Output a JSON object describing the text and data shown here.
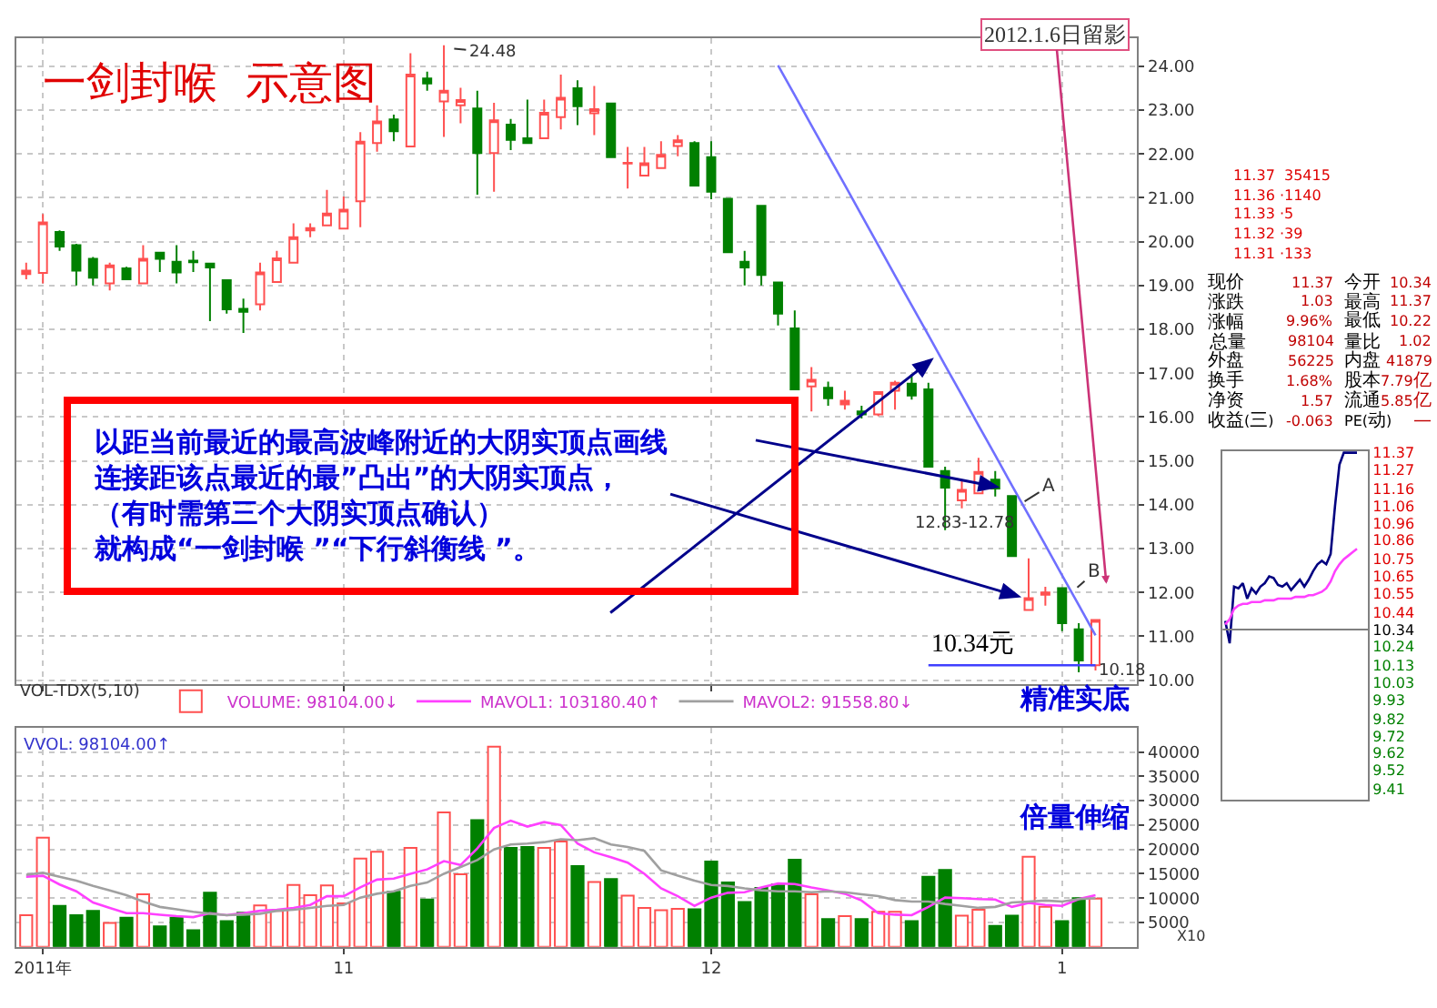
{
  "chart_data": [
    {
      "type": "candlestick",
      "title": "一剑封喉  示意图",
      "categories": [
        null,
        null,
        null,
        null,
        null,
        null,
        null,
        null,
        null,
        null,
        null,
        null,
        null,
        null,
        null,
        null,
        null,
        null,
        null,
        null,
        null,
        null,
        null,
        null,
        null,
        null,
        null,
        null,
        null,
        null,
        null,
        null,
        null,
        null,
        null,
        null,
        null,
        null,
        null,
        null,
        null,
        null,
        null,
        null,
        null,
        null,
        null,
        null,
        null,
        null,
        null,
        null,
        null,
        null,
        null,
        null,
        null,
        null,
        null,
        null,
        null,
        null,
        null,
        null,
        null
      ],
      "ohlc": [
        [
          19.26,
          19.52,
          19.14,
          19.34
        ],
        [
          19.29,
          20.63,
          19.05,
          20.44
        ],
        [
          20.22,
          20.26,
          19.79,
          19.89
        ],
        [
          19.92,
          19.95,
          19.0,
          19.34
        ],
        [
          19.61,
          19.65,
          19.0,
          19.18
        ],
        [
          19.05,
          19.52,
          18.89,
          19.46
        ],
        [
          19.39,
          19.43,
          19.12,
          19.14
        ],
        [
          19.05,
          19.92,
          19.05,
          19.61
        ],
        [
          19.75,
          19.76,
          19.31,
          19.61
        ],
        [
          19.54,
          19.92,
          19.05,
          19.3
        ],
        [
          19.57,
          19.79,
          19.31,
          19.53
        ],
        [
          19.5,
          19.5,
          18.19,
          19.41
        ],
        [
          19.12,
          19.12,
          18.36,
          18.46
        ],
        [
          18.47,
          18.7,
          17.92,
          18.4
        ],
        [
          18.57,
          19.52,
          18.43,
          19.3
        ],
        [
          19.08,
          19.79,
          19.08,
          19.62
        ],
        [
          19.52,
          20.42,
          19.52,
          20.1
        ],
        [
          20.26,
          20.42,
          20.1,
          20.31
        ],
        [
          20.37,
          21.18,
          20.37,
          20.64
        ],
        [
          20.3,
          21.03,
          20.3,
          20.73
        ],
        [
          20.92,
          22.5,
          20.33,
          22.28
        ],
        [
          22.25,
          23.11,
          22.05,
          22.74
        ],
        [
          22.79,
          22.9,
          22.29,
          22.52
        ],
        [
          22.17,
          24.3,
          22.17,
          23.81
        ],
        [
          23.72,
          23.88,
          23.44,
          23.61
        ],
        [
          23.2,
          24.48,
          22.39,
          23.44
        ],
        [
          23.11,
          23.51,
          22.7,
          23.23
        ],
        [
          23.04,
          23.44,
          21.07,
          22.02
        ],
        [
          22.02,
          23.17,
          21.14,
          22.77
        ],
        [
          22.67,
          22.8,
          22.09,
          22.32
        ],
        [
          22.36,
          23.24,
          22.23,
          22.25
        ],
        [
          22.36,
          23.24,
          22.36,
          22.94
        ],
        [
          22.84,
          23.81,
          22.56,
          23.28
        ],
        [
          23.5,
          23.68,
          22.66,
          23.09
        ],
        [
          22.93,
          23.55,
          22.43,
          23.02
        ],
        [
          23.15,
          23.15,
          21.93,
          21.93
        ],
        [
          21.78,
          22.16,
          21.21,
          21.8
        ],
        [
          21.51,
          22.16,
          21.51,
          21.79
        ],
        [
          21.68,
          22.29,
          21.68,
          21.98
        ],
        [
          22.18,
          22.43,
          21.95,
          22.31
        ],
        [
          22.25,
          22.29,
          21.28,
          21.28
        ],
        [
          21.93,
          22.29,
          20.97,
          21.14
        ],
        [
          20.98,
          20.98,
          19.76,
          19.76
        ],
        [
          19.54,
          19.79,
          19.0,
          19.41
        ],
        [
          20.82,
          20.82,
          19.0,
          19.24
        ],
        [
          19.07,
          19.07,
          18.09,
          18.36
        ],
        [
          18.02,
          18.43,
          16.63,
          16.63
        ],
        [
          16.7,
          17.14,
          16.13,
          16.85
        ],
        [
          16.67,
          16.81,
          16.26,
          16.43
        ],
        [
          16.29,
          16.6,
          16.17,
          16.37
        ],
        [
          16.13,
          16.26,
          15.97,
          16.06
        ],
        [
          16.06,
          16.57,
          16.02,
          16.57
        ],
        [
          16.6,
          16.83,
          16.17,
          16.78
        ],
        [
          16.76,
          16.98,
          16.4,
          16.49
        ],
        [
          16.63,
          16.78,
          14.87,
          14.87
        ],
        [
          14.77,
          14.87,
          13.42,
          14.39
        ],
        [
          14.1,
          14.54,
          13.92,
          14.34
        ],
        [
          14.26,
          15.07,
          14.26,
          14.75
        ],
        [
          14.57,
          14.77,
          14.19,
          14.37
        ],
        [
          14.2,
          14.2,
          12.83,
          12.83
        ],
        [
          11.6,
          12.78,
          11.6,
          11.87
        ],
        [
          11.95,
          12.13,
          11.7,
          12.0
        ],
        [
          12.1,
          12.1,
          11.12,
          11.3
        ],
        [
          11.16,
          11.3,
          10.18,
          10.45
        ],
        [
          10.34,
          11.37,
          10.22,
          11.37
        ]
      ],
      "colors": [
        "#ff5050",
        "#ff5050",
        "#008000",
        "#008000",
        "#008000",
        "#ff5050",
        "#008000",
        "#ff5050",
        "#008000",
        "#008000",
        "#008000",
        "#008000",
        "#008000",
        "#008000",
        "#ff5050",
        "#ff5050",
        "#ff5050",
        "#ff5050",
        "#ff5050",
        "#ff5050",
        "#ff5050",
        "#ff5050",
        "#008000",
        "#ff5050",
        "#008000",
        "#ff5050",
        "#ff5050",
        "#008000",
        "#ff5050",
        "#008000",
        "#008000",
        "#ff5050",
        "#ff5050",
        "#008000",
        "#ff5050",
        "#008000",
        "#ff5050",
        "#ff5050",
        "#ff5050",
        "#ff5050",
        "#008000",
        "#008000",
        "#008000",
        "#008000",
        "#008000",
        "#008000",
        "#008000",
        "#ff5050",
        "#008000",
        "#ff5050",
        "#008000",
        "#ff5050",
        "#ff5050",
        "#008000",
        "#008000",
        "#008000",
        "#ff5050",
        "#ff5050",
        "#008000",
        "#008000",
        "#ff5050",
        "#ff5050",
        "#008000",
        "#008000",
        "#ff5050"
      ],
      "series": [
        {
          "type": "line",
          "color": "#7070ff",
          "values": [
            null,
            null,
            null,
            null,
            null,
            null,
            null,
            null,
            null,
            null,
            null,
            null,
            null,
            null,
            null,
            null,
            null,
            null,
            null,
            null,
            null,
            null,
            null,
            null,
            null,
            null,
            null,
            null,
            null,
            null,
            null,
            null,
            null,
            null,
            null,
            null,
            null,
            null,
            null,
            null,
            null,
            null,
            null,
            null,
            null,
            24.02,
            23.34,
            22.65,
            21.97,
            21.29,
            20.6,
            19.92,
            19.23,
            18.55,
            17.87,
            17.18,
            16.5,
            15.81,
            15.13,
            14.44,
            13.76,
            13.08,
            12.39,
            11.71,
            11.02
          ]
        },
        {
          "type": "line",
          "color": "#4040ff",
          "values": [
            null,
            null,
            null,
            null,
            null,
            null,
            null,
            null,
            null,
            null,
            null,
            null,
            null,
            null,
            null,
            null,
            null,
            null,
            null,
            null,
            null,
            null,
            null,
            null,
            null,
            null,
            null,
            null,
            null,
            null,
            null,
            null,
            null,
            null,
            null,
            null,
            null,
            null,
            null,
            null,
            null,
            null,
            null,
            null,
            null,
            null,
            null,
            null,
            null,
            null,
            null,
            null,
            null,
            null,
            10.34,
            10.34,
            10.34,
            10.34,
            10.34,
            10.34,
            10.34,
            10.34,
            10.34,
            10.34,
            10.34
          ]
        }
      ],
      "ylim": [
        9.9,
        24.65
      ],
      "yticks": [
        {
          "value": 10,
          "label": "10.00"
        },
        {
          "value": 11,
          "label": "11.00"
        },
        {
          "value": 12,
          "label": "12.00"
        },
        {
          "value": 13,
          "label": "13.00"
        },
        {
          "value": 14,
          "label": "14.00"
        },
        {
          "value": 15,
          "label": "15.00"
        },
        {
          "value": 16,
          "label": "16.00"
        },
        {
          "value": 17,
          "label": "17.00"
        },
        {
          "value": 18,
          "label": "18.00"
        },
        {
          "value": 19,
          "label": "19.00"
        },
        {
          "value": 20,
          "label": "20.00"
        },
        {
          "value": 21,
          "label": "21.00"
        },
        {
          "value": 22,
          "label": "22.00"
        },
        {
          "value": 23,
          "label": "23.00"
        },
        {
          "value": 24,
          "label": "24.00"
        }
      ],
      "grid": true,
      "tick_labels": "y",
      "annotations": [
        "以距当前最近的最高波峰附近的大阴实顶点画线",
        "连接距该点最近的最”凸出”的大阴实顶点，",
        "（有时需第三个大阴实顶点确认）",
        "就构成“一剑封喉 ”“下行斜衡线 ”。",
        "24.48",
        "A",
        "B",
        "12.83-12.78",
        "10.34元",
        "10.18",
        "2012.1.6日留影",
        "精准实底"
      ]
    },
    {
      "type": "bar",
      "legend_title": "VOL-TDX(5,10)",
      "categories": [
        null,
        "2011年",
        null,
        null,
        null,
        null,
        null,
        null,
        null,
        null,
        null,
        null,
        null,
        null,
        null,
        null,
        null,
        null,
        null,
        "11",
        null,
        null,
        null,
        null,
        null,
        null,
        null,
        null,
        null,
        null,
        null,
        null,
        null,
        null,
        null,
        null,
        null,
        null,
        null,
        null,
        null,
        "12",
        null,
        null,
        null,
        null,
        null,
        null,
        null,
        null,
        null,
        null,
        null,
        null,
        null,
        null,
        null,
        null,
        null,
        null,
        null,
        null,
        "1",
        null,
        null
      ],
      "series": [
        {
          "type": "bar",
          "name": "VOLUME: 98104.00↓",
          "colors": [
            "#ff5050",
            "#ff5050",
            "#008000",
            "#008000",
            "#008000",
            "#ff5050",
            "#008000",
            "#ff5050",
            "#008000",
            "#008000",
            "#008000",
            "#008000",
            "#008000",
            "#008000",
            "#ff5050",
            "#ff5050",
            "#ff5050",
            "#ff5050",
            "#ff5050",
            "#ff5050",
            "#ff5050",
            "#ff5050",
            "#008000",
            "#ff5050",
            "#008000",
            "#ff5050",
            "#ff5050",
            "#008000",
            "#ff5050",
            "#008000",
            "#008000",
            "#ff5050",
            "#ff5050",
            "#008000",
            "#ff5050",
            "#008000",
            "#ff5050",
            "#ff5050",
            "#ff5050",
            "#ff5050",
            "#008000",
            "#008000",
            "#008000",
            "#008000",
            "#008000",
            "#008000",
            "#008000",
            "#ff5050",
            "#008000",
            "#ff5050",
            "#008000",
            "#ff5050",
            "#ff5050",
            "#008000",
            "#008000",
            "#008000",
            "#ff5050",
            "#ff5050",
            "#008000",
            "#008000",
            "#ff5050",
            "#ff5050",
            "#008000",
            "#008000",
            "#ff5050"
          ],
          "values": [
            6500,
            22400,
            8400,
            6500,
            7400,
            4900,
            6000,
            10800,
            4200,
            6000,
            3400,
            11100,
            5300,
            7000,
            8500,
            7400,
            12700,
            10600,
            12600,
            8900,
            18100,
            19500,
            11300,
            20300,
            9700,
            27600,
            14900,
            26000,
            41100,
            20300,
            20500,
            20300,
            21600,
            16600,
            13300,
            13900,
            10500,
            8000,
            7500,
            7800,
            7700,
            17500,
            13200,
            9200,
            12100,
            12800,
            17900,
            10800,
            5700,
            6300,
            5700,
            7200,
            7200,
            5300,
            14400,
            15800,
            6400,
            7600,
            4300,
            6400,
            18500,
            8200,
            5300,
            10000,
            9900
          ]
        },
        {
          "type": "line",
          "name": "MAVOL1: 103180.40↑",
          "color": "#ff40ff",
          "values": [
            14400,
            14600,
            12800,
            11400,
            9100,
            8000,
            6900,
            6900,
            6600,
            6300,
            6100,
            6900,
            6500,
            6900,
            7400,
            7600,
            8000,
            8600,
            10400,
            10400,
            12200,
            13800,
            14000,
            15000,
            15900,
            17600,
            16800,
            20200,
            24400,
            25900,
            24700,
            25600,
            25000,
            21200,
            19400,
            18400,
            17300,
            15000,
            12000,
            10400,
            8400,
            10100,
            11100,
            11200,
            12200,
            13000,
            12900,
            12200,
            11600,
            10900,
            9500,
            6900,
            6600,
            6500,
            8200,
            10100,
            10000,
            9800,
            9700,
            8200,
            9000,
            8600,
            8400,
            9800,
            10600
          ]
        },
        {
          "type": "line",
          "name": "MAVOL2: 91558.80↓",
          "color": "#a0a0a0",
          "values": [
            14800,
            15200,
            14400,
            13600,
            12500,
            11600,
            10600,
            9300,
            8200,
            7700,
            7200,
            6800,
            6500,
            6600,
            6800,
            7400,
            7600,
            8000,
            8400,
            8600,
            10100,
            10900,
            11400,
            12500,
            13200,
            15000,
            16400,
            17800,
            20000,
            21000,
            21200,
            21500,
            22100,
            21900,
            22300,
            21000,
            20500,
            19700,
            15700,
            14600,
            13600,
            12700,
            12500,
            12000,
            11600,
            11400,
            11400,
            11200,
            11400,
            11200,
            10800,
            10400,
            9600,
            9300,
            9300,
            8800,
            8400,
            8000,
            8200,
            9100,
            9300,
            9500,
            9300,
            9800,
            10000
          ]
        }
      ],
      "ylim": [
        0,
        45000
      ],
      "yticks": [
        5000,
        10000,
        15000,
        20000,
        25000,
        30000,
        35000,
        40000
      ],
      "grid": true,
      "legend": "top left",
      "annotations": [
        "VVOL: 98104.00↑",
        "倍量伸缩",
        "X10"
      ]
    },
    {
      "type": "other",
      "annotations": [
        "11.37  35415",
        "11.36 ·1140",
        "11.33 ·5",
        "11.32 ·39",
        "11.31 ·133",
        "现价",
        "11.37",
        "今开",
        "10.34",
        "涨跌",
        "1.03",
        "最高",
        "11.37",
        "涨幅",
        "9.96%",
        "最低",
        "10.22",
        "总量",
        "98104",
        "量比",
        "1.02",
        "外盘",
        "56225",
        "内盘",
        "41879",
        "换手",
        "1.68%",
        "股本",
        "7.79亿",
        "净资",
        "1.57",
        "流通",
        "5.85亿",
        "收益(三)",
        "-0.063",
        "PE(动)",
        "—"
      ]
    },
    {
      "type": "line",
      "categories": [
        null,
        null,
        null,
        null,
        null,
        null,
        null,
        null,
        null,
        null,
        null,
        null,
        null,
        null,
        null,
        null,
        null,
        null,
        null,
        null,
        null,
        null,
        null,
        null,
        null,
        null,
        null,
        null,
        null,
        null,
        null
      ],
      "series": [
        {
          "color": "#000080",
          "values": [
            10.39,
            10.26,
            10.59,
            10.58,
            10.61,
            10.52,
            10.58,
            10.55,
            10.59,
            10.61,
            10.65,
            10.64,
            10.6,
            10.59,
            10.61,
            10.57,
            10.6,
            10.63,
            10.59,
            10.63,
            10.68,
            10.72,
            10.74,
            10.72,
            10.78,
            11.06,
            11.3,
            11.37,
            11.37,
            11.37,
            11.37
          ]
        },
        {
          "color": "#ff40ff",
          "values": [
            10.37,
            10.4,
            10.46,
            10.48,
            10.49,
            10.49,
            10.5,
            10.5,
            10.5,
            10.51,
            10.51,
            10.51,
            10.52,
            10.52,
            10.52,
            10.52,
            10.53,
            10.53,
            10.53,
            10.54,
            10.54,
            10.55,
            10.56,
            10.58,
            10.62,
            10.68,
            10.72,
            10.75,
            10.77,
            10.79,
            10.81
          ]
        }
      ],
      "ylim": [
        9.35,
        11.38
      ],
      "yticks": [
        11.37,
        11.27,
        11.16,
        11.06,
        10.96,
        10.86,
        10.75,
        10.65,
        10.55,
        10.44,
        10.34,
        10.24,
        10.13,
        10.03,
        9.93,
        9.82,
        9.72,
        9.62,
        9.52,
        9.41
      ],
      "ref_lines": [
        {
          "axis": "y",
          "value": 10.34,
          "color": "#808080"
        }
      ],
      "tick_labels": "y"
    }
  ]
}
